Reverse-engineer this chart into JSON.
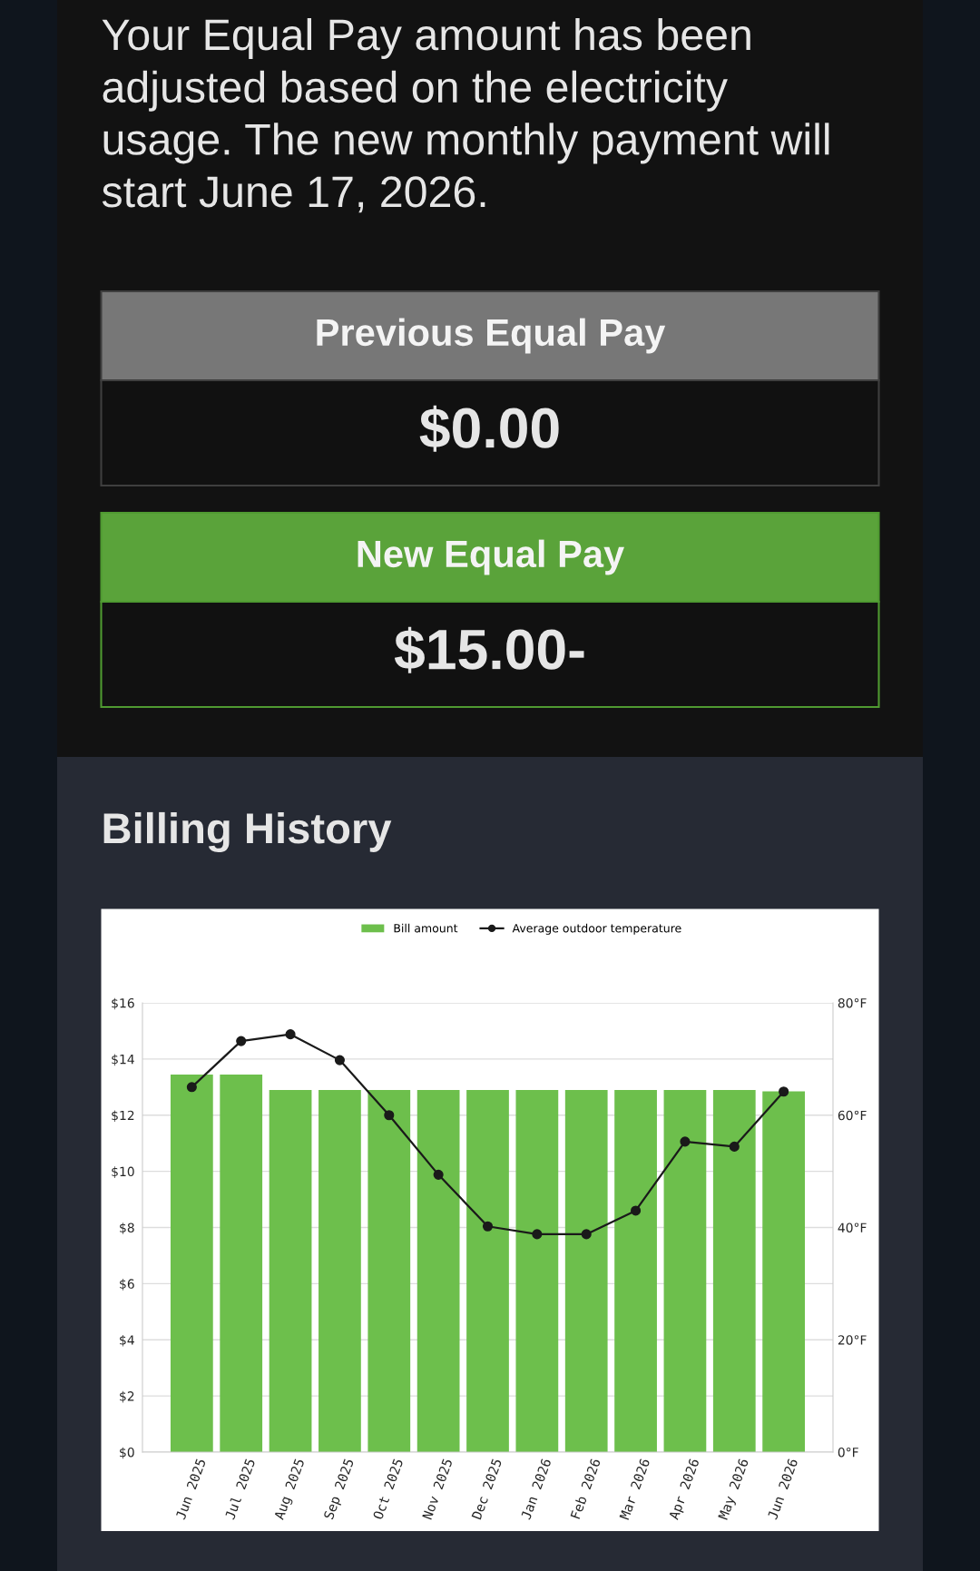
{
  "chart_data": [
    {
      "type": "other",
      "annotations": [
        "Your Equal Pay amount has been adjusted based on the electricity usage. The new monthly payment will start June 17, 2026.",
        "Previous Equal Pay",
        "$0.00",
        "New Equal Pay",
        "$15.00-"
      ]
    },
    {
      "type": "bar",
      "title": "Billing History",
      "categories": [
        "Jun 2025",
        "Jul 2025",
        "Aug 2025",
        "Sep 2025",
        "Oct 2025",
        "Nov 2025",
        "Dec 2025",
        "Jan 2026",
        "Feb 2026",
        "Mar 2026",
        "Apr 2026",
        "May 2026",
        "Jun 2026"
      ],
      "series": [
        {
          "name": "Bill amount",
          "color": "#6dbf4c",
          "values": [
            13.45,
            13.45,
            12.9,
            12.9,
            12.9,
            12.9,
            12.9,
            12.9,
            12.9,
            12.9,
            12.9,
            12.9,
            12.85
          ]
        },
        {
          "name": "Average outdoor temperature",
          "type": "line",
          "axis": "y2",
          "color": "#1a1a1a",
          "values": [
            65,
            73.2,
            74.4,
            69.8,
            60,
            49.4,
            40.2,
            38.8,
            38.8,
            43,
            55.3,
            54.4,
            64.2
          ]
        }
      ],
      "ylim": [
        0,
        16
      ],
      "yticks": [
        {
          "value": 0,
          "label": "$0"
        },
        {
          "value": 2,
          "label": "$2"
        },
        {
          "value": 4,
          "label": "$4"
        },
        {
          "value": 6,
          "label": "$6"
        },
        {
          "value": 8,
          "label": "$8"
        },
        {
          "value": 10,
          "label": "$10"
        },
        {
          "value": 12,
          "label": "$12"
        },
        {
          "value": 14,
          "label": "$14"
        },
        {
          "value": 16,
          "label": "$16"
        }
      ],
      "y2lim": [
        0,
        80
      ],
      "y2ticks": [
        {
          "value": 0,
          "label": "0°F"
        },
        {
          "value": 20,
          "label": "20°F"
        },
        {
          "value": 40,
          "label": "40°F"
        },
        {
          "value": 60,
          "label": "60°F"
        },
        {
          "value": 80,
          "label": "80°F"
        }
      ],
      "grid": "y",
      "legend": "top",
      "marker": "circle"
    }
  ]
}
